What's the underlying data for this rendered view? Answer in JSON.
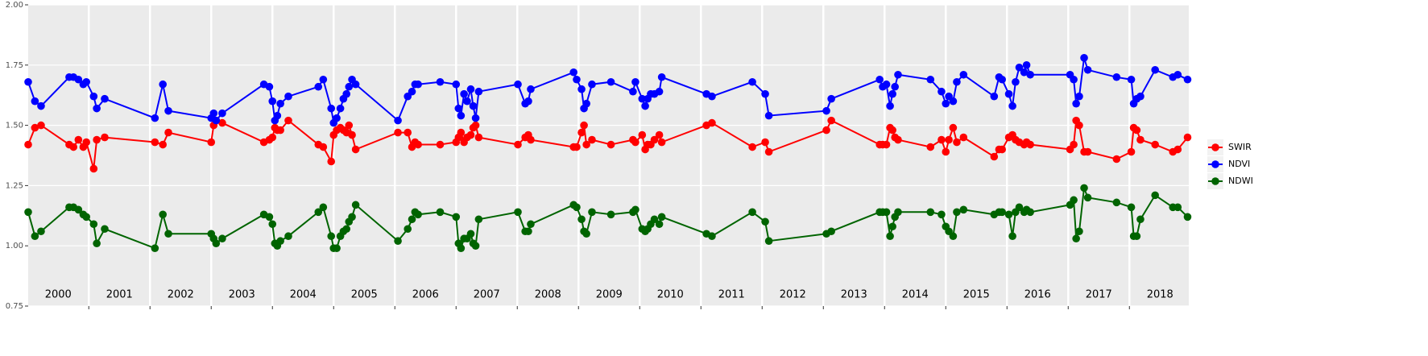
{
  "chart_data": {
    "type": "line",
    "x": [
      2000.01,
      2000.12,
      2000.22,
      2000.68,
      2000.75,
      2000.83,
      2000.91,
      2000.96,
      2001.08,
      2001.13,
      2001.26,
      2002.08,
      2002.21,
      2002.3,
      2003.0,
      2003.04,
      2003.08,
      2003.18,
      2003.86,
      2003.95,
      2004.0,
      2004.04,
      2004.08,
      2004.13,
      2004.26,
      2004.75,
      2004.83,
      2004.96,
      2005.0,
      2005.05,
      2005.11,
      2005.16,
      2005.21,
      2005.25,
      2005.3,
      2005.36,
      2006.05,
      2006.21,
      2006.28,
      2006.33,
      2006.38,
      2006.74,
      2007.0,
      2007.04,
      2007.08,
      2007.13,
      2007.18,
      2007.24,
      2007.28,
      2007.32,
      2007.37,
      2008.01,
      2008.13,
      2008.18,
      2008.22,
      2008.92,
      2008.97,
      2009.05,
      2009.09,
      2009.13,
      2009.22,
      2009.53,
      2009.89,
      2009.93,
      2010.04,
      2010.09,
      2010.13,
      2010.18,
      2010.24,
      2010.32,
      2010.36,
      2011.09,
      2011.18,
      2011.84,
      2012.05,
      2012.11,
      2013.05,
      2013.13,
      2013.92,
      2013.97,
      2014.03,
      2014.09,
      2014.13,
      2014.17,
      2014.22,
      2014.75,
      2014.93,
      2015.0,
      2015.05,
      2015.12,
      2015.18,
      2015.29,
      2015.79,
      2015.87,
      2015.92,
      2016.03,
      2016.09,
      2016.14,
      2016.2,
      2016.28,
      2016.32,
      2016.38,
      2017.03,
      2017.09,
      2017.13,
      2017.18,
      2017.26,
      2017.32,
      2017.79,
      2018.03,
      2018.07,
      2018.12,
      2018.18,
      2018.42,
      2018.71,
      2018.79,
      2018.95
    ],
    "series": [
      {
        "name": "SWIR",
        "color": "#ff0000",
        "values": [
          1.42,
          1.49,
          1.5,
          1.42,
          1.41,
          1.44,
          1.41,
          1.43,
          1.32,
          1.44,
          1.45,
          1.43,
          1.42,
          1.47,
          1.43,
          1.5,
          1.52,
          1.51,
          1.43,
          1.44,
          1.45,
          1.49,
          1.48,
          1.48,
          1.52,
          1.42,
          1.41,
          1.35,
          1.46,
          1.48,
          1.49,
          1.48,
          1.47,
          1.5,
          1.46,
          1.4,
          1.47,
          1.47,
          1.41,
          1.43,
          1.42,
          1.42,
          1.43,
          1.45,
          1.47,
          1.43,
          1.45,
          1.46,
          1.49,
          1.5,
          1.45,
          1.42,
          1.45,
          1.46,
          1.44,
          1.41,
          1.41,
          1.47,
          1.5,
          1.42,
          1.44,
          1.42,
          1.44,
          1.43,
          1.46,
          1.4,
          1.42,
          1.42,
          1.44,
          1.46,
          1.43,
          1.5,
          1.51,
          1.41,
          1.43,
          1.39,
          1.48,
          1.52,
          1.42,
          1.42,
          1.42,
          1.49,
          1.48,
          1.45,
          1.44,
          1.41,
          1.44,
          1.39,
          1.44,
          1.49,
          1.43,
          1.45,
          1.37,
          1.4,
          1.4,
          1.45,
          1.46,
          1.44,
          1.43,
          1.42,
          1.43,
          1.42,
          1.4,
          1.42,
          1.52,
          1.5,
          1.39,
          1.39,
          1.36,
          1.39,
          1.49,
          1.48,
          1.44,
          1.42,
          1.39,
          1.4,
          1.45
        ]
      },
      {
        "name": "NDVI",
        "color": "#0000ff",
        "values": [
          1.68,
          1.6,
          1.58,
          1.7,
          1.7,
          1.69,
          1.67,
          1.68,
          1.62,
          1.57,
          1.61,
          1.53,
          1.67,
          1.56,
          1.53,
          1.55,
          1.52,
          1.55,
          1.67,
          1.66,
          1.6,
          1.52,
          1.54,
          1.59,
          1.62,
          1.66,
          1.69,
          1.57,
          1.51,
          1.53,
          1.57,
          1.61,
          1.63,
          1.66,
          1.69,
          1.67,
          1.52,
          1.62,
          1.64,
          1.67,
          1.67,
          1.68,
          1.67,
          1.57,
          1.54,
          1.63,
          1.6,
          1.65,
          1.58,
          1.53,
          1.64,
          1.67,
          1.59,
          1.6,
          1.65,
          1.72,
          1.69,
          1.65,
          1.57,
          1.59,
          1.67,
          1.68,
          1.64,
          1.68,
          1.61,
          1.58,
          1.61,
          1.63,
          1.63,
          1.64,
          1.7,
          1.63,
          1.62,
          1.68,
          1.63,
          1.54,
          1.56,
          1.61,
          1.69,
          1.66,
          1.67,
          1.58,
          1.63,
          1.66,
          1.71,
          1.69,
          1.64,
          1.59,
          1.62,
          1.6,
          1.68,
          1.71,
          1.62,
          1.7,
          1.69,
          1.63,
          1.58,
          1.68,
          1.74,
          1.72,
          1.75,
          1.71,
          1.71,
          1.69,
          1.59,
          1.62,
          1.78,
          1.73,
          1.7,
          1.69,
          1.59,
          1.61,
          1.62,
          1.73,
          1.7,
          1.71,
          1.69
        ]
      },
      {
        "name": "NDWI",
        "color": "#006400",
        "values": [
          1.14,
          1.04,
          1.06,
          1.16,
          1.16,
          1.15,
          1.13,
          1.12,
          1.09,
          1.01,
          1.07,
          0.99,
          1.13,
          1.05,
          1.05,
          1.03,
          1.01,
          1.03,
          1.13,
          1.12,
          1.09,
          1.01,
          1.0,
          1.02,
          1.04,
          1.14,
          1.16,
          1.04,
          0.99,
          0.99,
          1.04,
          1.06,
          1.07,
          1.1,
          1.12,
          1.17,
          1.02,
          1.07,
          1.11,
          1.14,
          1.13,
          1.14,
          1.12,
          1.01,
          0.99,
          1.03,
          1.03,
          1.05,
          1.01,
          1.0,
          1.11,
          1.14,
          1.06,
          1.06,
          1.09,
          1.17,
          1.16,
          1.11,
          1.06,
          1.05,
          1.14,
          1.13,
          1.14,
          1.15,
          1.07,
          1.06,
          1.07,
          1.09,
          1.11,
          1.09,
          1.12,
          1.05,
          1.04,
          1.14,
          1.1,
          1.02,
          1.05,
          1.06,
          1.14,
          1.14,
          1.14,
          1.04,
          1.08,
          1.12,
          1.14,
          1.14,
          1.13,
          1.08,
          1.06,
          1.04,
          1.14,
          1.15,
          1.13,
          1.14,
          1.14,
          1.13,
          1.04,
          1.14,
          1.16,
          1.14,
          1.15,
          1.14,
          1.17,
          1.19,
          1.03,
          1.06,
          1.24,
          1.2,
          1.18,
          1.16,
          1.04,
          1.04,
          1.11,
          1.21,
          1.16,
          1.16,
          1.12
        ]
      }
    ],
    "xlim": [
      2000.01,
      2018.97
    ],
    "xticks": [
      {
        "value": 2000.5,
        "label": "2000"
      },
      {
        "value": 2001.5,
        "label": "2001"
      },
      {
        "value": 2002.5,
        "label": "2002"
      },
      {
        "value": 2003.5,
        "label": "2003"
      },
      {
        "value": 2004.5,
        "label": "2004"
      },
      {
        "value": 2005.5,
        "label": "2005"
      },
      {
        "value": 2006.5,
        "label": "2006"
      },
      {
        "value": 2007.5,
        "label": "2007"
      },
      {
        "value": 2008.5,
        "label": "2008"
      },
      {
        "value": 2009.5,
        "label": "2009"
      },
      {
        "value": 2010.5,
        "label": "2010"
      },
      {
        "value": 2011.5,
        "label": "2011"
      },
      {
        "value": 2012.5,
        "label": "2012"
      },
      {
        "value": 2013.5,
        "label": "2013"
      },
      {
        "value": 2014.5,
        "label": "2014"
      },
      {
        "value": 2015.5,
        "label": "2015"
      },
      {
        "value": 2016.5,
        "label": "2016"
      },
      {
        "value": 2017.5,
        "label": "2017"
      },
      {
        "value": 2018.5,
        "label": "2018"
      }
    ],
    "year_boundaries": [
      2001,
      2002,
      2003,
      2004,
      2005,
      2006,
      2007,
      2008,
      2009,
      2010,
      2011,
      2012,
      2013,
      2014,
      2015,
      2016,
      2017,
      2018
    ],
    "ylim": [
      0.75,
      2.0
    ],
    "yticks": [
      0.75,
      {
        "value": 1.0,
        "label": "1.00"
      },
      1.25,
      {
        "value": 1.5,
        "label": "1.50"
      },
      1.75,
      {
        "value": 2.0,
        "label": "2.00"
      }
    ],
    "grid": true,
    "legend": "right"
  }
}
